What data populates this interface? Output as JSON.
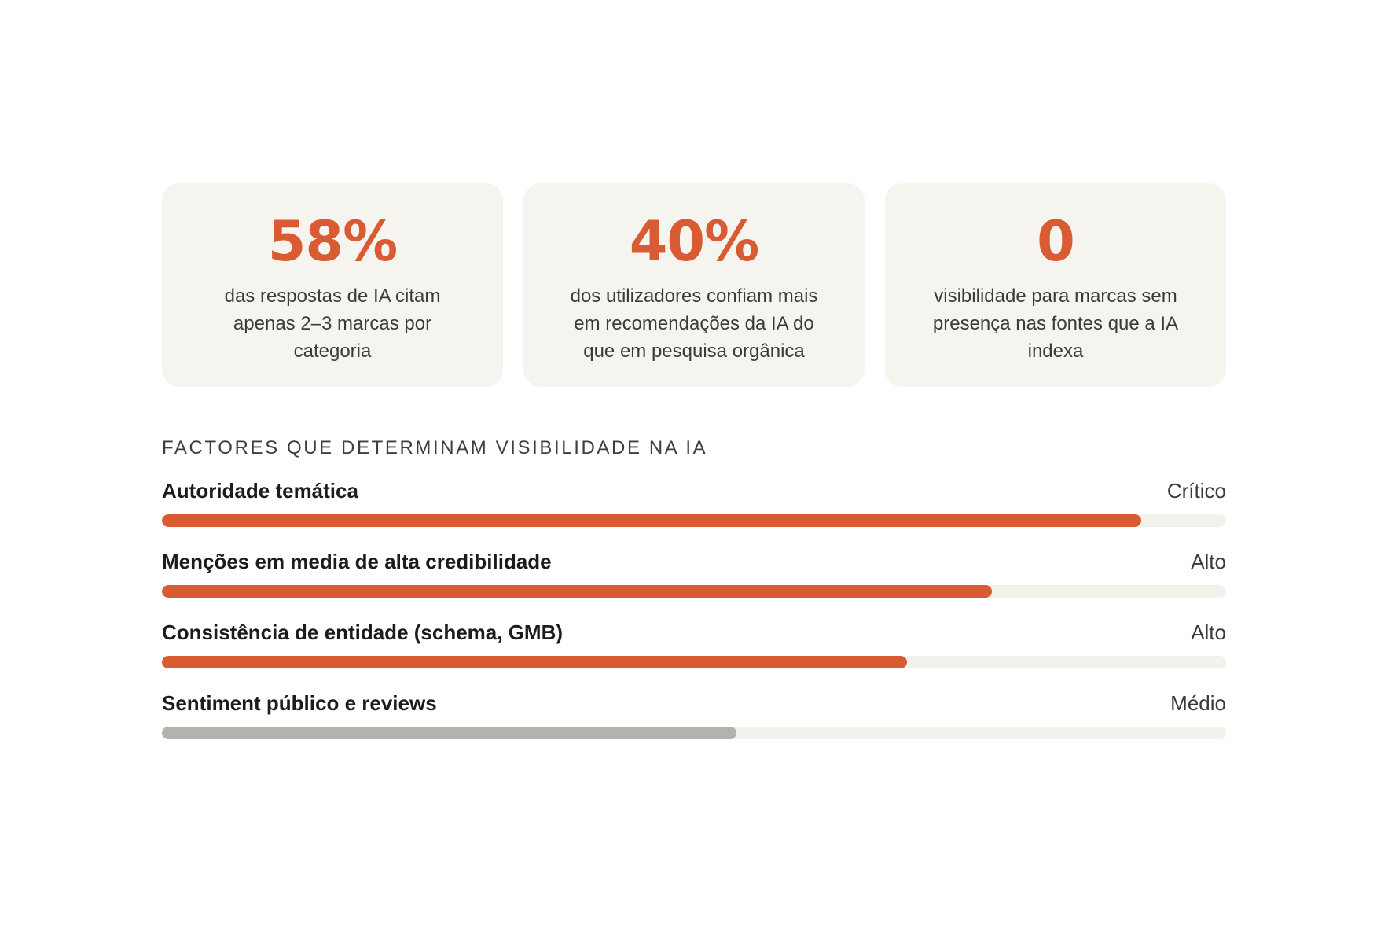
{
  "colors": {
    "accent": "#d95b33",
    "muted_bar": "#b5b2ad",
    "card_bg": "#f6f4ee",
    "track_bg": "#f3f1ec"
  },
  "stats": [
    {
      "value": "58%",
      "description": "das respostas de IA citam apenas 2–3 marcas por categoria"
    },
    {
      "value": "40%",
      "description": "dos utilizadores confiam mais em recomendações da IA do que em pesquisa orgânica"
    },
    {
      "value": "0",
      "description": "visibilidade para marcas sem presença nas fontes que a IA indexa"
    }
  ],
  "factors_section": {
    "title": "FACTORES QUE DETERMINAM VISIBILIDADE NA IA",
    "items": [
      {
        "label": "Autoridade temática",
        "level": "Crítico",
        "progress": 0.92,
        "color": "#d95b33"
      },
      {
        "label": "Menções em media de alta credibilidade",
        "level": "Alto",
        "progress": 0.78,
        "color": "#d95b33"
      },
      {
        "label": "Consistência de entidade (schema, GMB)",
        "level": "Alto",
        "progress": 0.7,
        "color": "#d95b33"
      },
      {
        "label": "Sentiment público e reviews",
        "level": "Médio",
        "progress": 0.54,
        "color": "#b5b2ad"
      }
    ]
  }
}
